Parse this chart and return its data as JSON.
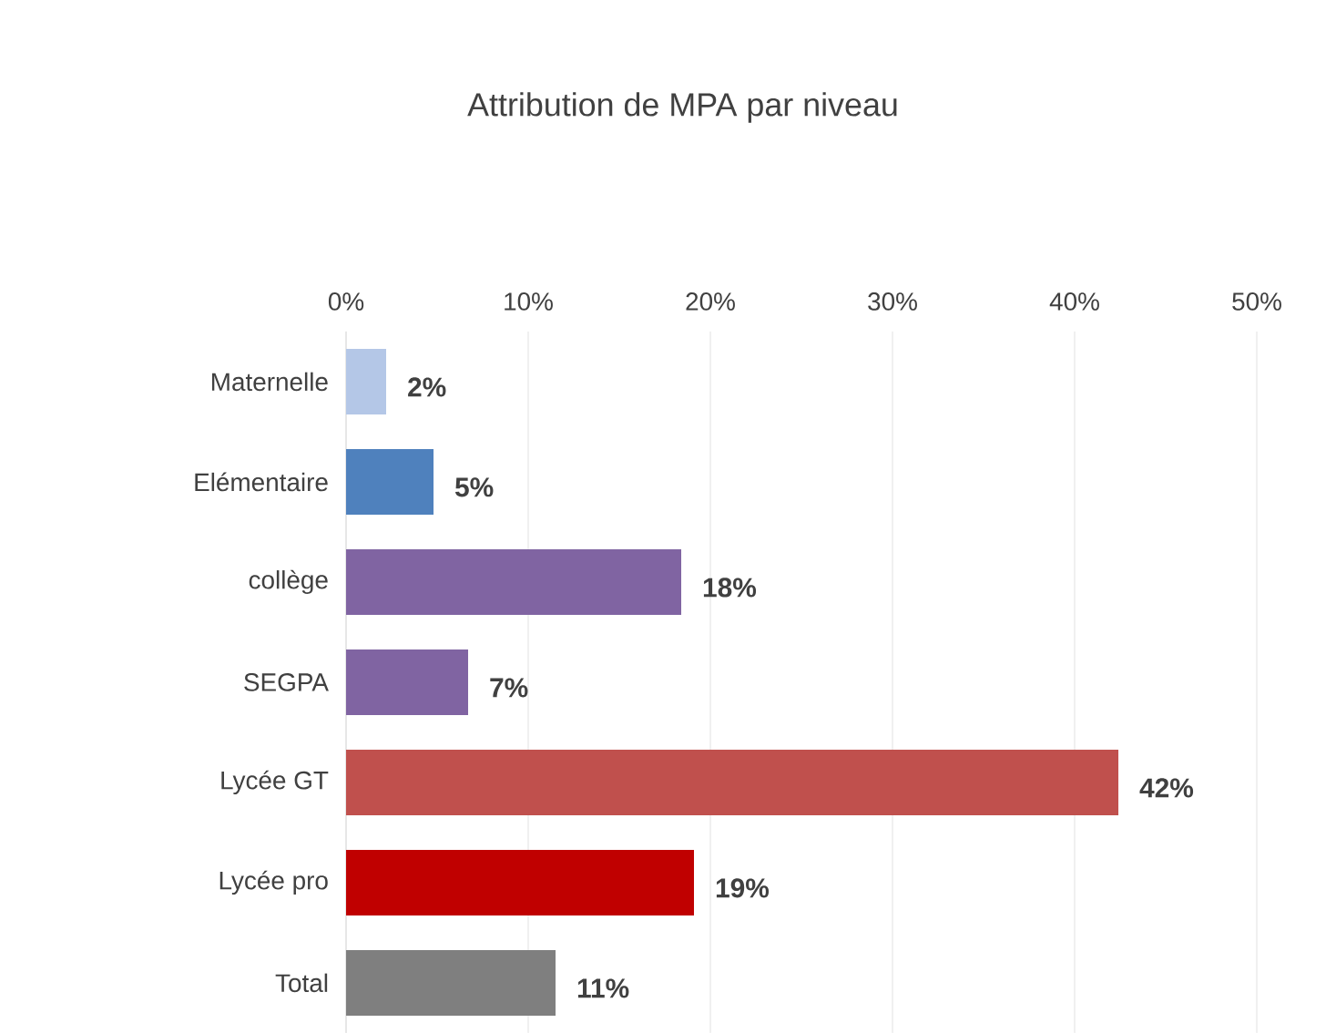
{
  "chart_data": {
    "type": "bar",
    "orientation": "horizontal",
    "title": "Attribution de MPA par niveau",
    "categories": [
      "Maternelle",
      "Elémentaire",
      "collège",
      "SEGPA",
      "Lycée GT",
      "Lycée pro",
      "Total"
    ],
    "values": [
      2.2,
      4.8,
      18.4,
      6.7,
      42.4,
      19.1,
      11.5
    ],
    "value_labels": [
      "2%",
      "5%",
      "18%",
      "7%",
      "42%",
      "19%",
      "11%"
    ],
    "colors": [
      "#b4c7e7",
      "#4f81bd",
      "#8064a2",
      "#8064a2",
      "#c0504d",
      "#c00000",
      "#7f7f7f"
    ],
    "xlim": [
      0,
      50
    ],
    "xticks": [
      {
        "value": 0,
        "label": "0%"
      },
      {
        "value": 10,
        "label": "10%"
      },
      {
        "value": 20,
        "label": "20%"
      },
      {
        "value": 30,
        "label": "30%"
      },
      {
        "value": 40,
        "label": "40%"
      },
      {
        "value": 50,
        "label": "50%"
      }
    ],
    "grid": "x"
  }
}
